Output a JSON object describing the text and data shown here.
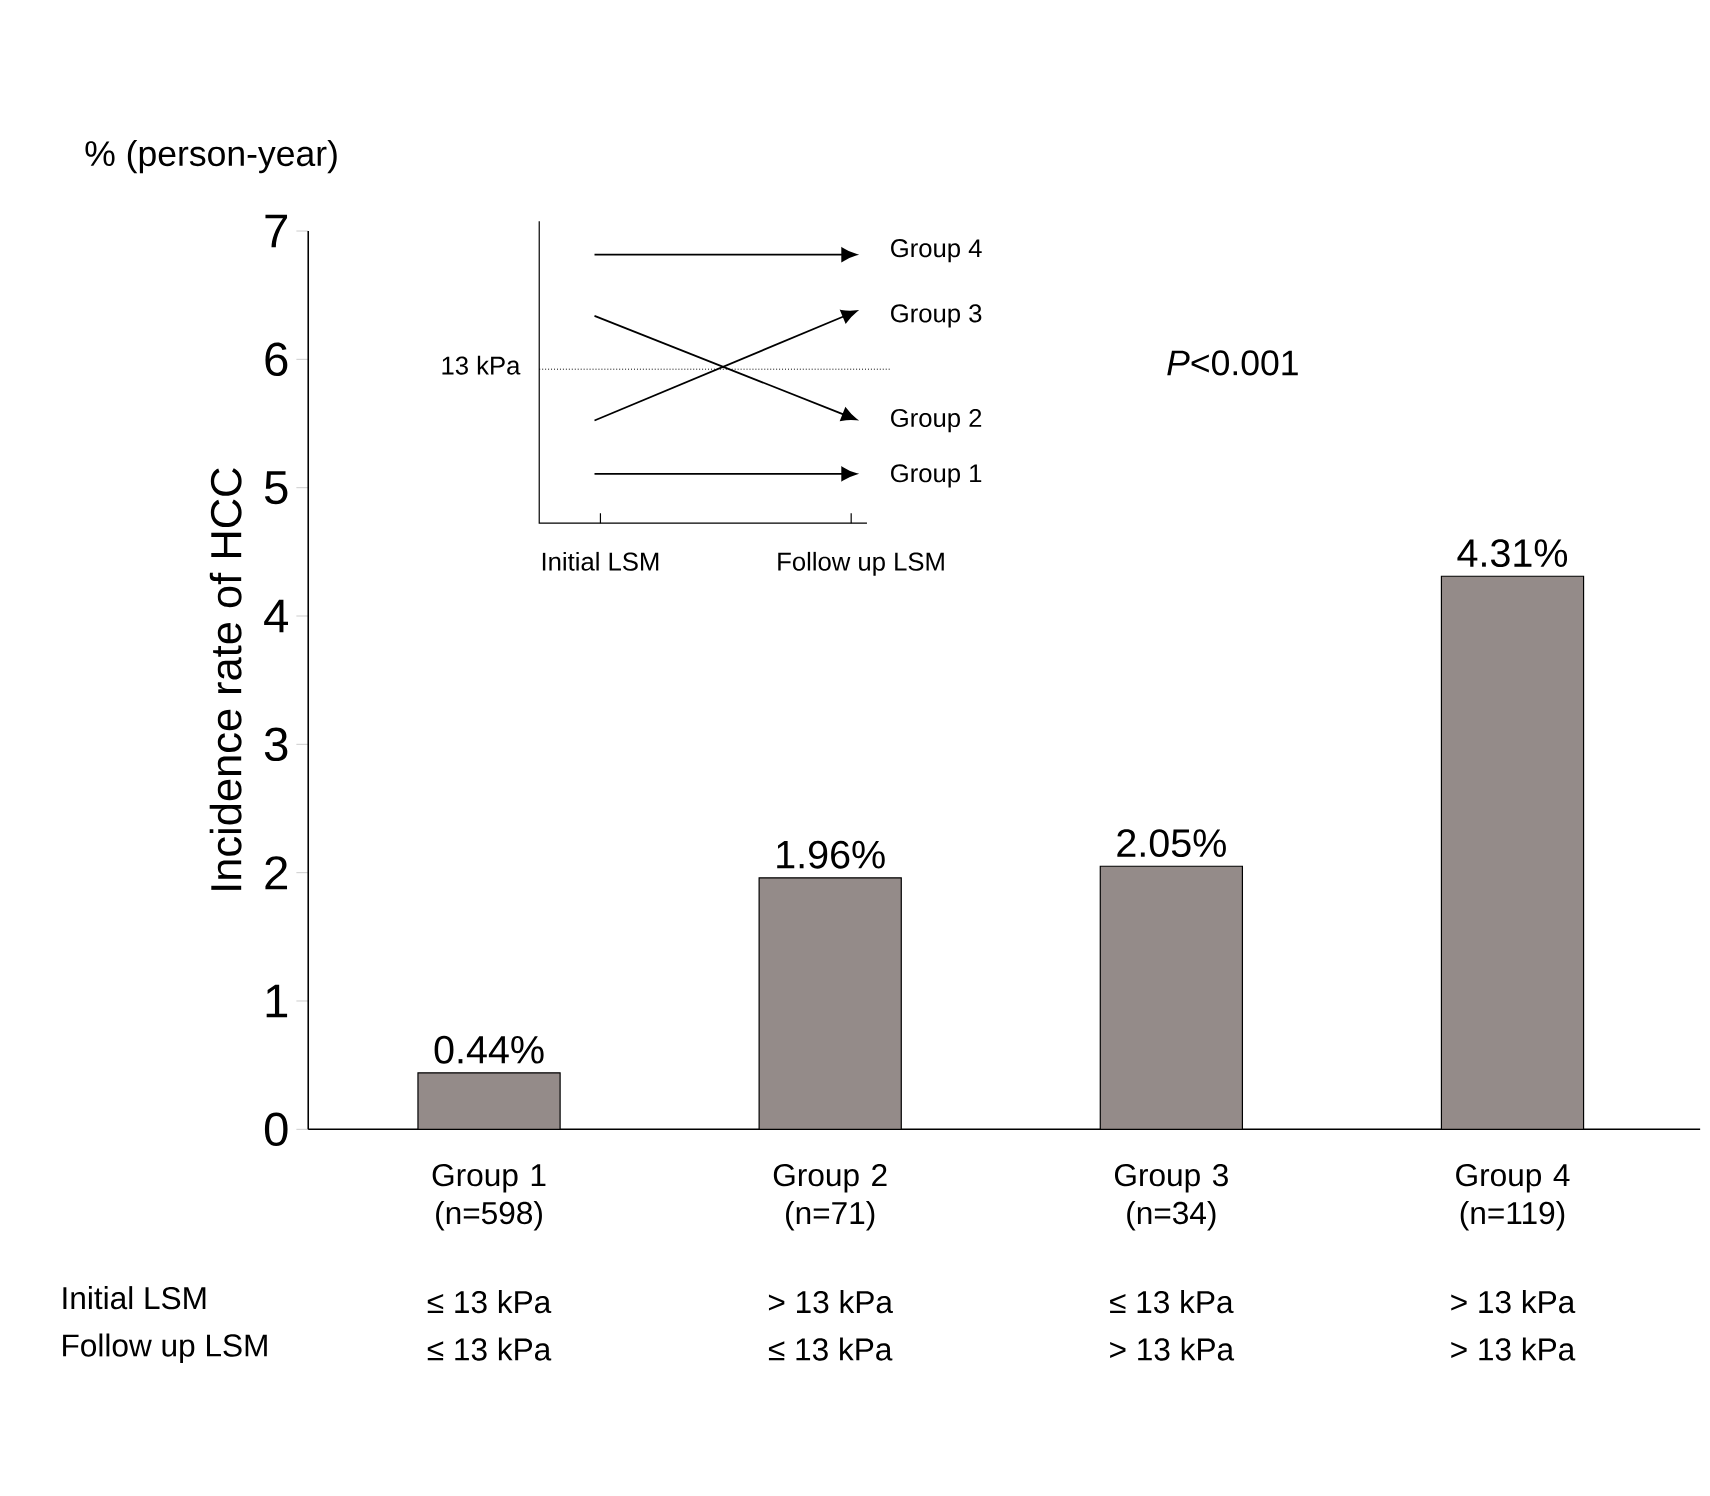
{
  "chart_data": {
    "type": "bar",
    "ylabel": "Incidence rate of HCC",
    "categories": [
      "Group 1 (n=598)",
      "Group 2 (n=71)",
      "Group 3 (n=34)",
      "Group 4 (n=119)"
    ],
    "values": [
      0.44,
      1.96,
      2.05,
      4.31
    ],
    "color": "#948b89",
    "ylim": [
      0,
      7
    ],
    "yticks": [
      0,
      1,
      2,
      3,
      4,
      5,
      6,
      7
    ],
    "value_labels": [
      "0.44%",
      "1.96%",
      "2.05%",
      "4.31%"
    ],
    "annotations": [
      "% (person-year)",
      "*P*<0.001",
      "Initial LSM",
      "Follow up LSM",
      "≤ 13 kPa",
      "> 13 kPa",
      "≤ 13 kPa",
      "> 13 kPa",
      "≤ 13 kPa",
      "≤ 13 kPa",
      "> 13 kPa",
      "> 13 kPa",
      "13 kPa",
      "Initial LSM",
      "Follow up LSM",
      "Group 4",
      "Group 3",
      "Group 2",
      "Group 1"
    ]
  }
}
